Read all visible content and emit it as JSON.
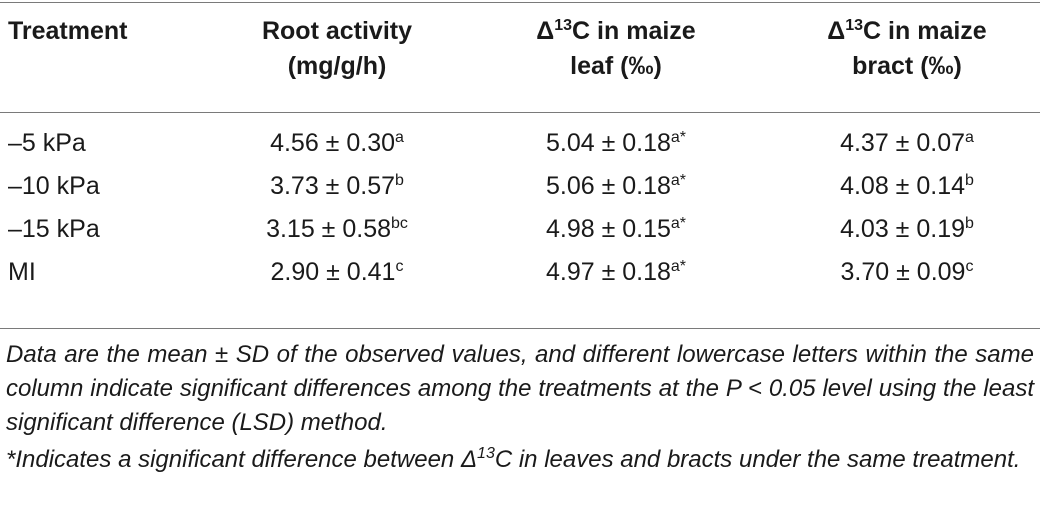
{
  "table": {
    "headers": [
      {
        "line1": "Treatment",
        "line2": ""
      },
      {
        "line1": "Root activity",
        "line2": "(mg/g/h)"
      },
      {
        "line1_pre": "Δ",
        "line1_sup": "13",
        "line1_post": "C in maize",
        "line2": "leaf (‰)"
      },
      {
        "line1_pre": "Δ",
        "line1_sup": "13",
        "line1_post": "C in maize",
        "line2": "bract (‰)"
      }
    ],
    "rows": [
      {
        "treatment": "–5 kPa",
        "root": {
          "value": "4.56 ± 0.30",
          "sup": "a"
        },
        "leaf": {
          "value": "5.04 ± 0.18",
          "sup": "a*"
        },
        "bract": {
          "value": "4.37 ± 0.07",
          "sup": "a"
        }
      },
      {
        "treatment": "–10 kPa",
        "root": {
          "value": "3.73 ± 0.57",
          "sup": "b"
        },
        "leaf": {
          "value": "5.06 ± 0.18",
          "sup": "a*"
        },
        "bract": {
          "value": "4.08 ± 0.14",
          "sup": "b"
        }
      },
      {
        "treatment": "–15 kPa",
        "root": {
          "value": "3.15 ± 0.58",
          "sup": "bc"
        },
        "leaf": {
          "value": "4.98 ± 0.15",
          "sup": "a*"
        },
        "bract": {
          "value": "4.03 ± 0.19",
          "sup": "b"
        }
      },
      {
        "treatment": "MI",
        "root": {
          "value": "2.90 ± 0.41",
          "sup": "c"
        },
        "leaf": {
          "value": "4.97 ± 0.18",
          "sup": "a*"
        },
        "bract": {
          "value": "3.70 ± 0.09",
          "sup": "c"
        }
      }
    ]
  },
  "notes": {
    "note1": "Data are the mean ± SD of the observed values, and different lowercase letters within the same column indicate significant differences among the treatments at the P < 0.05 level using the least significant difference (LSD) method.",
    "note2_pre": "*Indicates a significant difference between Δ",
    "note2_sup": "13",
    "note2_post": "C in leaves and bracts under the same treatment."
  }
}
